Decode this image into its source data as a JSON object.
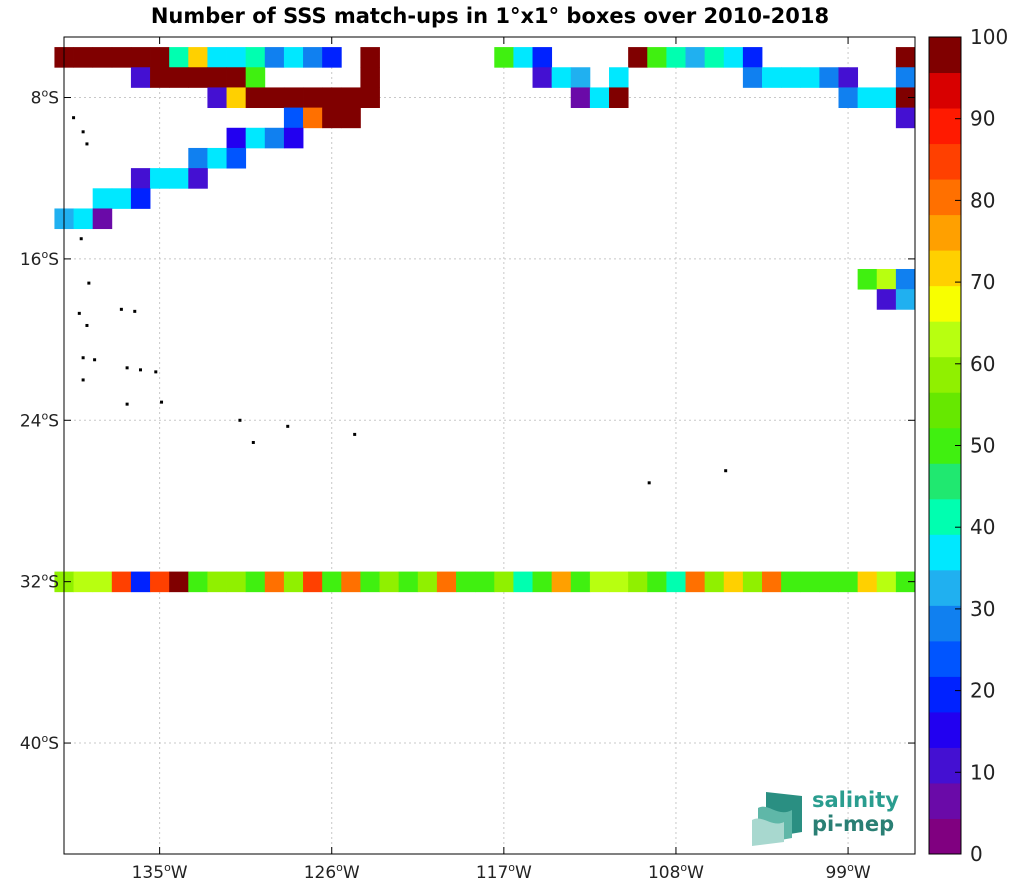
{
  "chart_data": {
    "type": "heatmap",
    "title": "Number of SSS match-ups in 1°x1° boxes over 2010-2018",
    "x_ticks": [
      {
        "value": -135,
        "label": "135",
        "hem": "W"
      },
      {
        "value": -126,
        "label": "126",
        "hem": "W"
      },
      {
        "value": -117,
        "label": "117",
        "hem": "W"
      },
      {
        "value": -108,
        "label": "108",
        "hem": "W"
      },
      {
        "value": -99,
        "label": "99",
        "hem": "W"
      }
    ],
    "y_ticks": [
      {
        "value": -8,
        "label": "8",
        "hem": "S"
      },
      {
        "value": -16,
        "label": "16",
        "hem": "S"
      },
      {
        "value": -24,
        "label": "24",
        "hem": "S"
      },
      {
        "value": -32,
        "label": "32",
        "hem": "S"
      },
      {
        "value": -40,
        "label": "40",
        "hem": "S"
      }
    ],
    "xlim": [
      -140,
      -95.5
    ],
    "ylim": [
      -45.5,
      -5
    ],
    "grid": true,
    "colorbar": {
      "range": [
        0,
        100
      ],
      "ticks": [
        0,
        10,
        20,
        30,
        40,
        50,
        60,
        70,
        80,
        90,
        100
      ],
      "colors": [
        "#800080",
        "#6a0aa8",
        "#4410d2",
        "#2200f0",
        "#0022ff",
        "#0055ff",
        "#1080f0",
        "#20b0f0",
        "#00e8ff",
        "#00ffb0",
        "#20e870",
        "#40f010",
        "#66e800",
        "#90f000",
        "#b8ff10",
        "#f8ff00",
        "#ffd000",
        "#ffa000",
        "#ff7000",
        "#ff4000",
        "#ff1a00",
        "#d80000",
        "#800000"
      ]
    },
    "cells": [
      {
        "lat": -6,
        "lon": -140,
        "v": 100
      },
      {
        "lat": -6,
        "lon": -139,
        "v": 100
      },
      {
        "lat": -6,
        "lon": -138,
        "v": 100
      },
      {
        "lat": -6,
        "lon": -137,
        "v": 100
      },
      {
        "lat": -6,
        "lon": -136,
        "v": 100
      },
      {
        "lat": -6,
        "lon": -135,
        "v": 100
      },
      {
        "lat": -6,
        "lon": -134,
        "v": 42
      },
      {
        "lat": -6,
        "lon": -133,
        "v": 70
      },
      {
        "lat": -6,
        "lon": -132,
        "v": 37
      },
      {
        "lat": -6,
        "lon": -131,
        "v": 37
      },
      {
        "lat": -6,
        "lon": -130,
        "v": 42
      },
      {
        "lat": -6,
        "lon": -129,
        "v": 28
      },
      {
        "lat": -6,
        "lon": -128,
        "v": 37
      },
      {
        "lat": -6,
        "lon": -127,
        "v": 28
      },
      {
        "lat": -6,
        "lon": -126,
        "v": 18
      },
      {
        "lat": -6,
        "lon": -124,
        "v": 100
      },
      {
        "lat": -6,
        "lon": -117,
        "v": 52
      },
      {
        "lat": -6,
        "lon": -116,
        "v": 37
      },
      {
        "lat": -6,
        "lon": -115,
        "v": 18
      },
      {
        "lat": -6,
        "lon": -110,
        "v": 100
      },
      {
        "lat": -6,
        "lon": -109,
        "v": 52
      },
      {
        "lat": -6,
        "lon": -108,
        "v": 42
      },
      {
        "lat": -6,
        "lon": -107,
        "v": 32
      },
      {
        "lat": -6,
        "lon": -106,
        "v": 42
      },
      {
        "lat": -6,
        "lon": -105,
        "v": 37
      },
      {
        "lat": -6,
        "lon": -104,
        "v": 18
      },
      {
        "lat": -6,
        "lon": -96,
        "v": 100
      },
      {
        "lat": -7,
        "lon": -136,
        "v": 10
      },
      {
        "lat": -7,
        "lon": -135,
        "v": 100
      },
      {
        "lat": -7,
        "lon": -134,
        "v": 100
      },
      {
        "lat": -7,
        "lon": -133,
        "v": 100
      },
      {
        "lat": -7,
        "lon": -132,
        "v": 100
      },
      {
        "lat": -7,
        "lon": -131,
        "v": 100
      },
      {
        "lat": -7,
        "lon": -130,
        "v": 52
      },
      {
        "lat": -7,
        "lon": -124,
        "v": 100
      },
      {
        "lat": -7,
        "lon": -115,
        "v": 10
      },
      {
        "lat": -7,
        "lon": -114,
        "v": 37
      },
      {
        "lat": -7,
        "lon": -113,
        "v": 32
      },
      {
        "lat": -7,
        "lon": -111,
        "v": 37
      },
      {
        "lat": -7,
        "lon": -104,
        "v": 28
      },
      {
        "lat": -7,
        "lon": -103,
        "v": 37
      },
      {
        "lat": -7,
        "lon": -102,
        "v": 37
      },
      {
        "lat": -7,
        "lon": -101,
        "v": 37
      },
      {
        "lat": -7,
        "lon": -100,
        "v": 28
      },
      {
        "lat": -7,
        "lon": -99,
        "v": 10
      },
      {
        "lat": -7,
        "lon": -96,
        "v": 28
      },
      {
        "lat": -8,
        "lon": -132,
        "v": 10
      },
      {
        "lat": -8,
        "lon": -131,
        "v": 70
      },
      {
        "lat": -8,
        "lon": -130,
        "v": 100
      },
      {
        "lat": -8,
        "lon": -129,
        "v": 100
      },
      {
        "lat": -8,
        "lon": -128,
        "v": 100
      },
      {
        "lat": -8,
        "lon": -127,
        "v": 100
      },
      {
        "lat": -8,
        "lon": -126,
        "v": 100
      },
      {
        "lat": -8,
        "lon": -125,
        "v": 100
      },
      {
        "lat": -8,
        "lon": -124,
        "v": 100
      },
      {
        "lat": -8,
        "lon": -113,
        "v": 5
      },
      {
        "lat": -8,
        "lon": -112,
        "v": 37
      },
      {
        "lat": -8,
        "lon": -111,
        "v": 100
      },
      {
        "lat": -8,
        "lon": -99,
        "v": 28
      },
      {
        "lat": -8,
        "lon": -98,
        "v": 37
      },
      {
        "lat": -8,
        "lon": -97,
        "v": 37
      },
      {
        "lat": -8,
        "lon": -96,
        "v": 100
      },
      {
        "lat": -9,
        "lon": -128,
        "v": 23
      },
      {
        "lat": -9,
        "lon": -127,
        "v": 80
      },
      {
        "lat": -9,
        "lon": -126,
        "v": 100
      },
      {
        "lat": -9,
        "lon": -125,
        "v": 100
      },
      {
        "lat": -9,
        "lon": -96,
        "v": 10
      },
      {
        "lat": -10,
        "lon": -131,
        "v": 14
      },
      {
        "lat": -10,
        "lon": -130,
        "v": 37
      },
      {
        "lat": -10,
        "lon": -129,
        "v": 28
      },
      {
        "lat": -10,
        "lon": -128,
        "v": 14
      },
      {
        "lat": -11,
        "lon": -133,
        "v": 28
      },
      {
        "lat": -11,
        "lon": -132,
        "v": 37
      },
      {
        "lat": -11,
        "lon": -131,
        "v": 23
      },
      {
        "lat": -12,
        "lon": -136,
        "v": 10
      },
      {
        "lat": -12,
        "lon": -135,
        "v": 37
      },
      {
        "lat": -12,
        "lon": -134,
        "v": 37
      },
      {
        "lat": -12,
        "lon": -133,
        "v": 10
      },
      {
        "lat": -13,
        "lon": -138,
        "v": 37
      },
      {
        "lat": -13,
        "lon": -137,
        "v": 37
      },
      {
        "lat": -13,
        "lon": -136,
        "v": 18
      },
      {
        "lat": -14,
        "lon": -140,
        "v": 32
      },
      {
        "lat": -14,
        "lon": -139,
        "v": 37
      },
      {
        "lat": -14,
        "lon": -138,
        "v": 5
      },
      {
        "lat": -17,
        "lon": -98,
        "v": 52
      },
      {
        "lat": -17,
        "lon": -97,
        "v": 62
      },
      {
        "lat": -17,
        "lon": -96,
        "v": 28
      },
      {
        "lat": -18,
        "lon": -97,
        "v": 10
      },
      {
        "lat": -18,
        "lon": -96,
        "v": 32
      },
      {
        "lat": -32,
        "lon": -140,
        "v": 57
      },
      {
        "lat": -32,
        "lon": -139,
        "v": 62
      },
      {
        "lat": -32,
        "lon": -138,
        "v": 62
      },
      {
        "lat": -32,
        "lon": -137,
        "v": 85
      },
      {
        "lat": -32,
        "lon": -136,
        "v": 18
      },
      {
        "lat": -32,
        "lon": -135,
        "v": 85
      },
      {
        "lat": -32,
        "lon": -134,
        "v": 100
      },
      {
        "lat": -32,
        "lon": -133,
        "v": 52
      },
      {
        "lat": -32,
        "lon": -132,
        "v": 57
      },
      {
        "lat": -32,
        "lon": -131,
        "v": 57
      },
      {
        "lat": -32,
        "lon": -130,
        "v": 52
      },
      {
        "lat": -32,
        "lon": -129,
        "v": 80
      },
      {
        "lat": -32,
        "lon": -128,
        "v": 57
      },
      {
        "lat": -32,
        "lon": -127,
        "v": 85
      },
      {
        "lat": -32,
        "lon": -126,
        "v": 52
      },
      {
        "lat": -32,
        "lon": -125,
        "v": 80
      },
      {
        "lat": -32,
        "lon": -124,
        "v": 52
      },
      {
        "lat": -32,
        "lon": -123,
        "v": 57
      },
      {
        "lat": -32,
        "lon": -122,
        "v": 52
      },
      {
        "lat": -32,
        "lon": -121,
        "v": 57
      },
      {
        "lat": -32,
        "lon": -120,
        "v": 80
      },
      {
        "lat": -32,
        "lon": -119,
        "v": 52
      },
      {
        "lat": -32,
        "lon": -118,
        "v": 52
      },
      {
        "lat": -32,
        "lon": -117,
        "v": 57
      },
      {
        "lat": -32,
        "lon": -116,
        "v": 42
      },
      {
        "lat": -32,
        "lon": -115,
        "v": 52
      },
      {
        "lat": -32,
        "lon": -114,
        "v": 75
      },
      {
        "lat": -32,
        "lon": -113,
        "v": 52
      },
      {
        "lat": -32,
        "lon": -112,
        "v": 62
      },
      {
        "lat": -32,
        "lon": -111,
        "v": 62
      },
      {
        "lat": -32,
        "lon": -110,
        "v": 57
      },
      {
        "lat": -32,
        "lon": -109,
        "v": 52
      },
      {
        "lat": -32,
        "lon": -108,
        "v": 42
      },
      {
        "lat": -32,
        "lon": -107,
        "v": 80
      },
      {
        "lat": -32,
        "lon": -106,
        "v": 57
      },
      {
        "lat": -32,
        "lon": -105,
        "v": 70
      },
      {
        "lat": -32,
        "lon": -104,
        "v": 57
      },
      {
        "lat": -32,
        "lon": -103,
        "v": 80
      },
      {
        "lat": -32,
        "lon": -102,
        "v": 52
      },
      {
        "lat": -32,
        "lon": -101,
        "v": 52
      },
      {
        "lat": -32,
        "lon": -100,
        "v": 52
      },
      {
        "lat": -32,
        "lon": -99,
        "v": 52
      },
      {
        "lat": -32,
        "lon": -98,
        "v": 70
      },
      {
        "lat": -32,
        "lon": -97,
        "v": 62
      },
      {
        "lat": -32,
        "lon": -96,
        "v": 52
      }
    ],
    "islands": [
      {
        "lon": -139.5,
        "lat": -9.0
      },
      {
        "lon": -139.0,
        "lat": -9.7
      },
      {
        "lon": -138.8,
        "lat": -10.3
      },
      {
        "lon": -139.1,
        "lat": -15.0
      },
      {
        "lon": -138.7,
        "lat": -17.2
      },
      {
        "lon": -139.2,
        "lat": -18.7
      },
      {
        "lon": -138.8,
        "lat": -19.3
      },
      {
        "lon": -137.0,
        "lat": -18.5
      },
      {
        "lon": -136.3,
        "lat": -18.6
      },
      {
        "lon": -139.0,
        "lat": -20.9
      },
      {
        "lon": -138.4,
        "lat": -21.0
      },
      {
        "lon": -136.7,
        "lat": -21.4
      },
      {
        "lon": -136.0,
        "lat": -21.5
      },
      {
        "lon": -135.2,
        "lat": -21.6
      },
      {
        "lon": -139.0,
        "lat": -22.0
      },
      {
        "lon": -134.9,
        "lat": -23.1
      },
      {
        "lon": -136.7,
        "lat": -23.2
      },
      {
        "lon": -130.8,
        "lat": -24.0
      },
      {
        "lon": -128.3,
        "lat": -24.3
      },
      {
        "lon": -130.1,
        "lat": -25.1
      },
      {
        "lon": -124.8,
        "lat": -24.7
      },
      {
        "lon": -109.4,
        "lat": -27.1
      },
      {
        "lon": -105.4,
        "lat": -26.5
      }
    ]
  },
  "logo": {
    "line1": "salinity",
    "line2": "pi-mep"
  }
}
